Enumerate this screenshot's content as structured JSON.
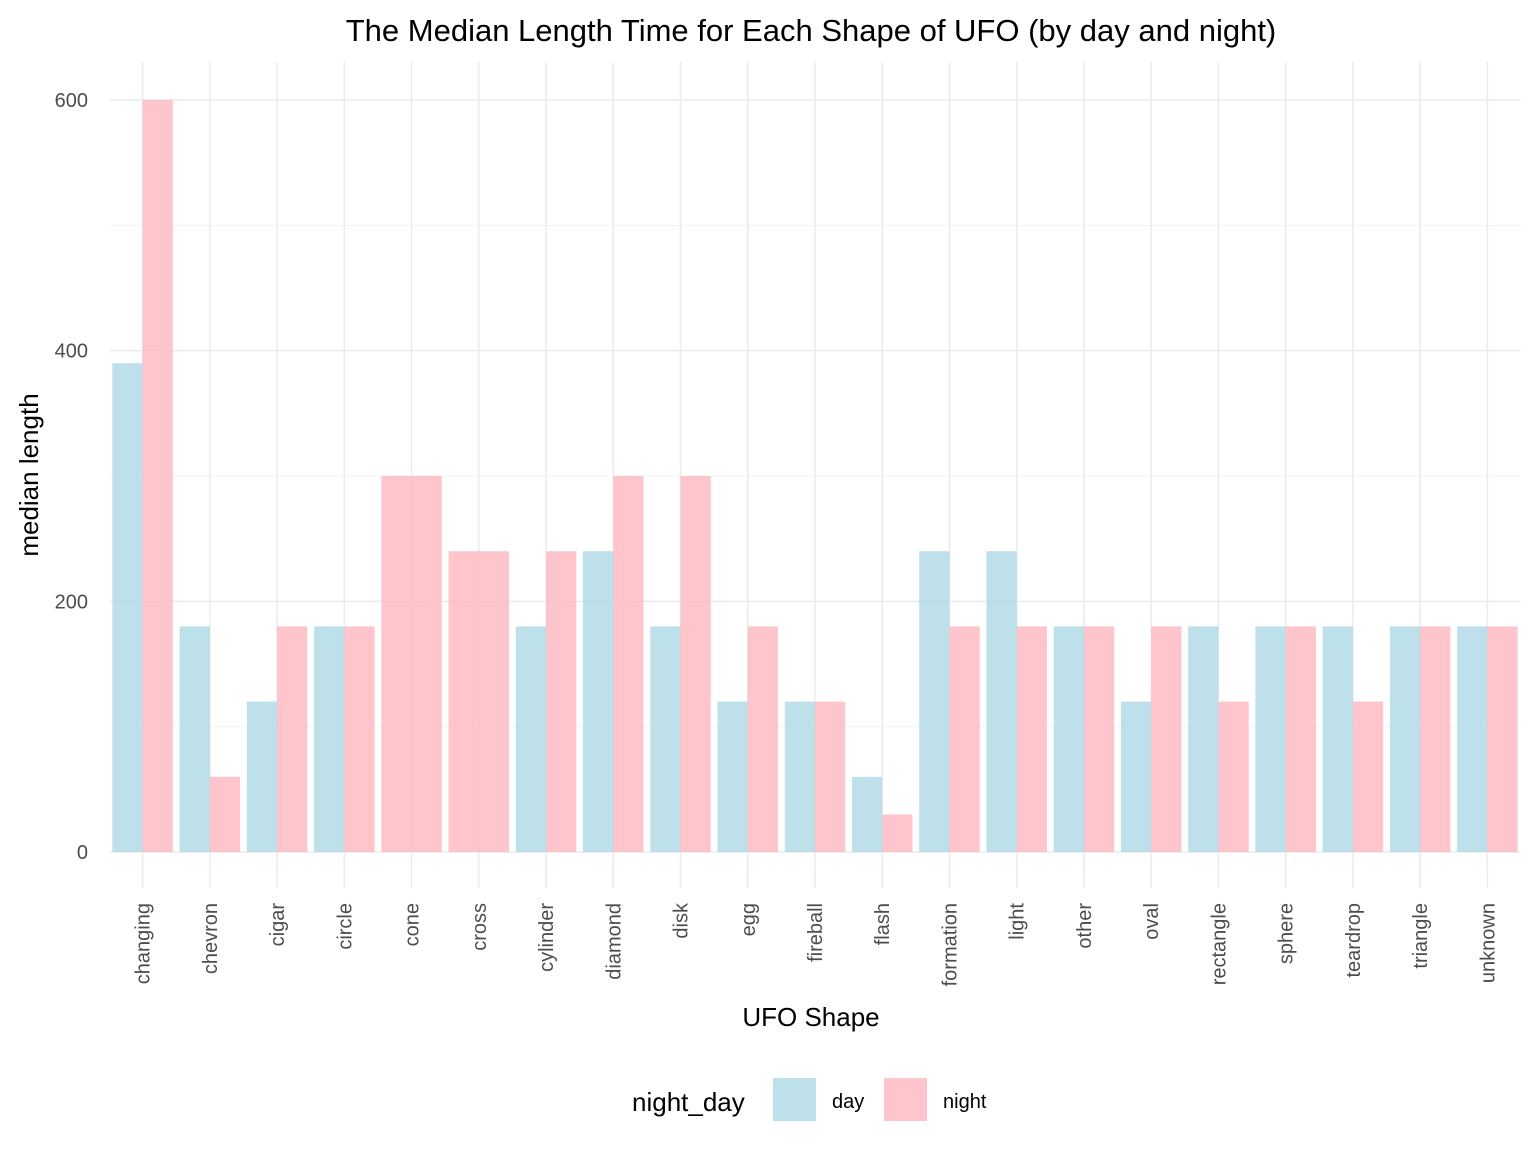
{
  "chart_data": {
    "type": "bar",
    "title": "The Median Length Time for Each Shape of UFO (by day and night)",
    "xlabel": "UFO Shape",
    "ylabel": "median length",
    "ylim": [
      0,
      630
    ],
    "yticks": [
      0,
      200,
      400,
      600
    ],
    "grid": true,
    "legend": {
      "title": "night_day",
      "position": "bottom"
    },
    "categories": [
      "changing",
      "chevron",
      "cigar",
      "circle",
      "cone",
      "cross",
      "cylinder",
      "diamond",
      "disk",
      "egg",
      "fireball",
      "flash",
      "formation",
      "light",
      "other",
      "oval",
      "rectangle",
      "sphere",
      "teardrop",
      "triangle",
      "unknown"
    ],
    "series": [
      {
        "name": "day",
        "color": "#add8e6",
        "values": [
          390,
          180,
          120,
          180,
          null,
          null,
          180,
          240,
          180,
          120,
          120,
          60,
          240,
          240,
          180,
          120,
          180,
          180,
          180,
          180,
          180
        ]
      },
      {
        "name": "night",
        "color": "#ffb6c1",
        "values": [
          600,
          60,
          180,
          180,
          300,
          240,
          240,
          300,
          300,
          180,
          120,
          30,
          180,
          180,
          180,
          180,
          120,
          180,
          120,
          180,
          180
        ]
      }
    ]
  }
}
